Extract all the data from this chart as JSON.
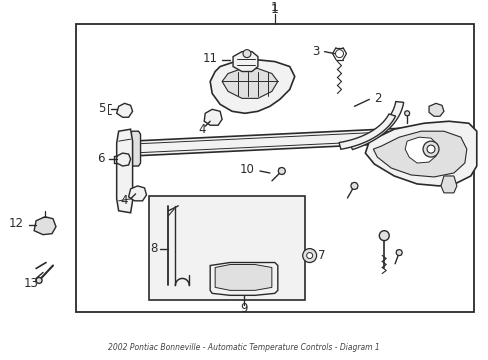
{
  "bg": "#ffffff",
  "lc": "#2a2a2a",
  "fc_light": "#f2f2f2",
  "fc_mid": "#e0e0e0",
  "fc_dark": "#c8c8c8",
  "fig_w": 4.89,
  "fig_h": 3.6,
  "dpi": 100,
  "title_bottom": "2002 Pontiac Bonneville - Automatic Temperature Controls - Diagram 1"
}
